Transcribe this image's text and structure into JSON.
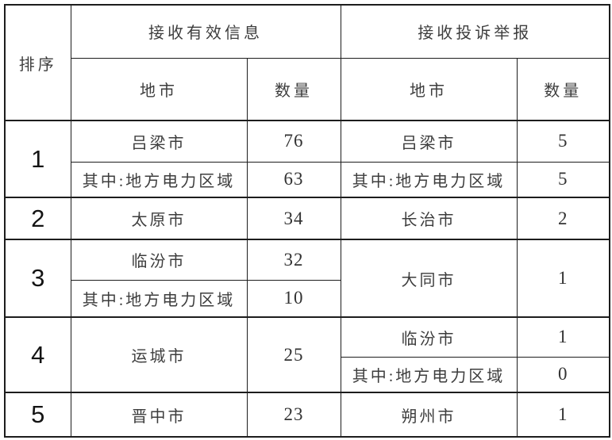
{
  "table": {
    "header": {
      "rank": "排序",
      "valid_info_group": "接收有效信息",
      "complaint_group": "接收投诉举报",
      "city": "地市",
      "count": "数量"
    },
    "groups": [
      {
        "rank": "1",
        "left": [
          {
            "city": "吕梁市",
            "count": "76"
          },
          {
            "city": "其中:地方电力区域",
            "count": "63"
          }
        ],
        "right": [
          {
            "city": "吕梁市",
            "count": "5"
          },
          {
            "city": "其中:地方电力区域",
            "count": "5"
          }
        ]
      },
      {
        "rank": "2",
        "left": [
          {
            "city": "太原市",
            "count": "34"
          }
        ],
        "right": [
          {
            "city": "长治市",
            "count": "2"
          }
        ]
      },
      {
        "rank": "3",
        "left": [
          {
            "city": "临汾市",
            "count": "32"
          },
          {
            "city": "其中:地方电力区域",
            "count": "10"
          }
        ],
        "right": [
          {
            "city": "大同市",
            "count": "1"
          }
        ]
      },
      {
        "rank": "4",
        "left": [
          {
            "city": "运城市",
            "count": "25"
          }
        ],
        "right": [
          {
            "city": "临汾市",
            "count": "1"
          },
          {
            "city": "其中:地方电力区域",
            "count": "0"
          }
        ]
      },
      {
        "rank": "5",
        "left": [
          {
            "city": "晋中市",
            "count": "23"
          }
        ],
        "right": [
          {
            "city": "朔州市",
            "count": "1"
          }
        ]
      }
    ],
    "colors": {
      "border": "#1d1d1d",
      "text": "#3d3d3d",
      "background": "#ffffff"
    }
  }
}
